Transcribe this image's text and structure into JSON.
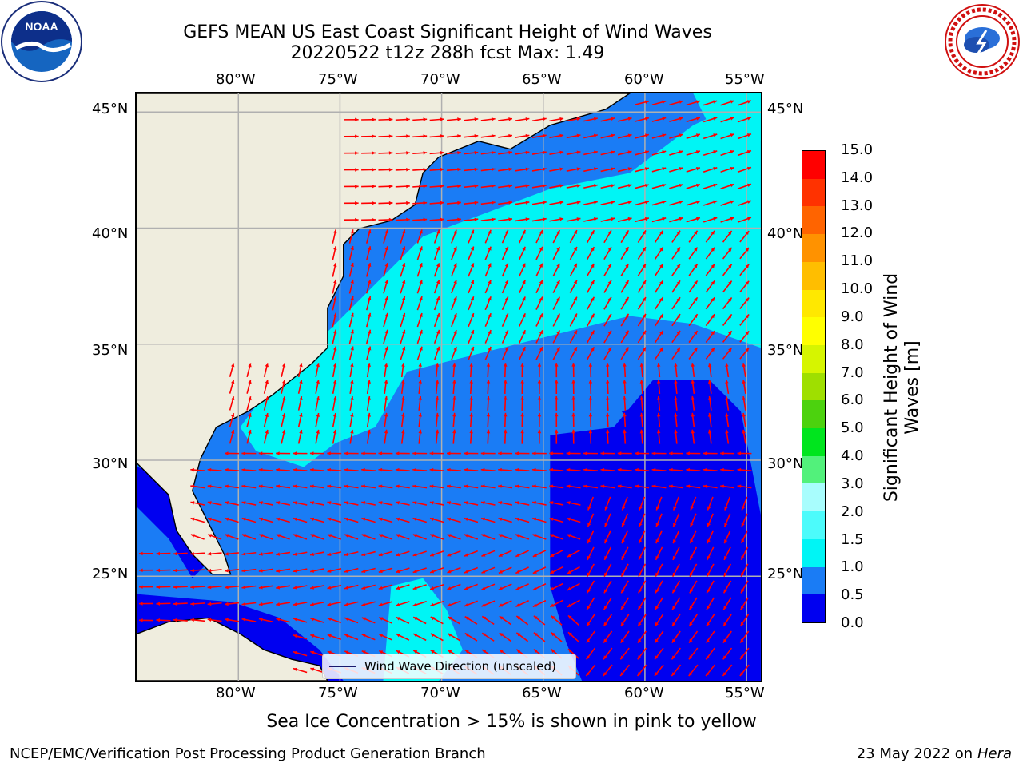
{
  "header": {
    "title_line1": "GEFS MEAN US East Coast Significant Height of Wind Waves",
    "title_line2": "20220522 t12z 288h fcst    Max: 1.49"
  },
  "logos": {
    "left": "noaa-logo",
    "right": "nws-logo"
  },
  "map": {
    "lon_labels": [
      "80°W",
      "75°W",
      "70°W",
      "65°W",
      "60°W",
      "55°W"
    ],
    "lat_labels": [
      "45°N",
      "40°N",
      "35°N",
      "30°N",
      "25°N"
    ],
    "lon_values": [
      -80,
      -75,
      -70,
      -65,
      -60,
      -55
    ],
    "lat_values": [
      45,
      40,
      35,
      30,
      25
    ],
    "lon_range": [
      -85,
      -54.3
    ],
    "lat_range": [
      20.5,
      45.8
    ],
    "legend_label": "Wind Wave Direction (unscaled)",
    "colors": {
      "land": "#efedde",
      "water_0": "#0000f0",
      "water_05": "#1a7cf5",
      "water_10": "#00f5f5",
      "arrow": "#ff0000",
      "grid": "#b0b0b0"
    }
  },
  "colorbar": {
    "label": "Significant Height of Wind Waves [m]",
    "ticks": [
      "0.0",
      "0.5",
      "1.0",
      "1.5",
      "2.0",
      "3.0",
      "4.0",
      "5.0",
      "6.0",
      "7.0",
      "8.0",
      "9.0",
      "10.0",
      "11.0",
      "12.0",
      "13.0",
      "14.0",
      "15.0"
    ],
    "colors": [
      "#0000f0",
      "#1a7cf5",
      "#00f5f5",
      "#4cfbfb",
      "#a8fdfd",
      "#52f17b",
      "#00e51e",
      "#4cd20e",
      "#9fdf00",
      "#d6f500",
      "#ffff00",
      "#ffe800",
      "#ffbe00",
      "#ff9200",
      "#ff6400",
      "#ff3200",
      "#ff0000"
    ]
  },
  "footer": {
    "note": "Sea Ice Concentration > 15% is shown in pink to yellow",
    "left": "NCEP/EMC/Verification Post Processing Product Generation Branch",
    "right_date": "23 May 2022 on",
    "right_host": "Hera"
  }
}
